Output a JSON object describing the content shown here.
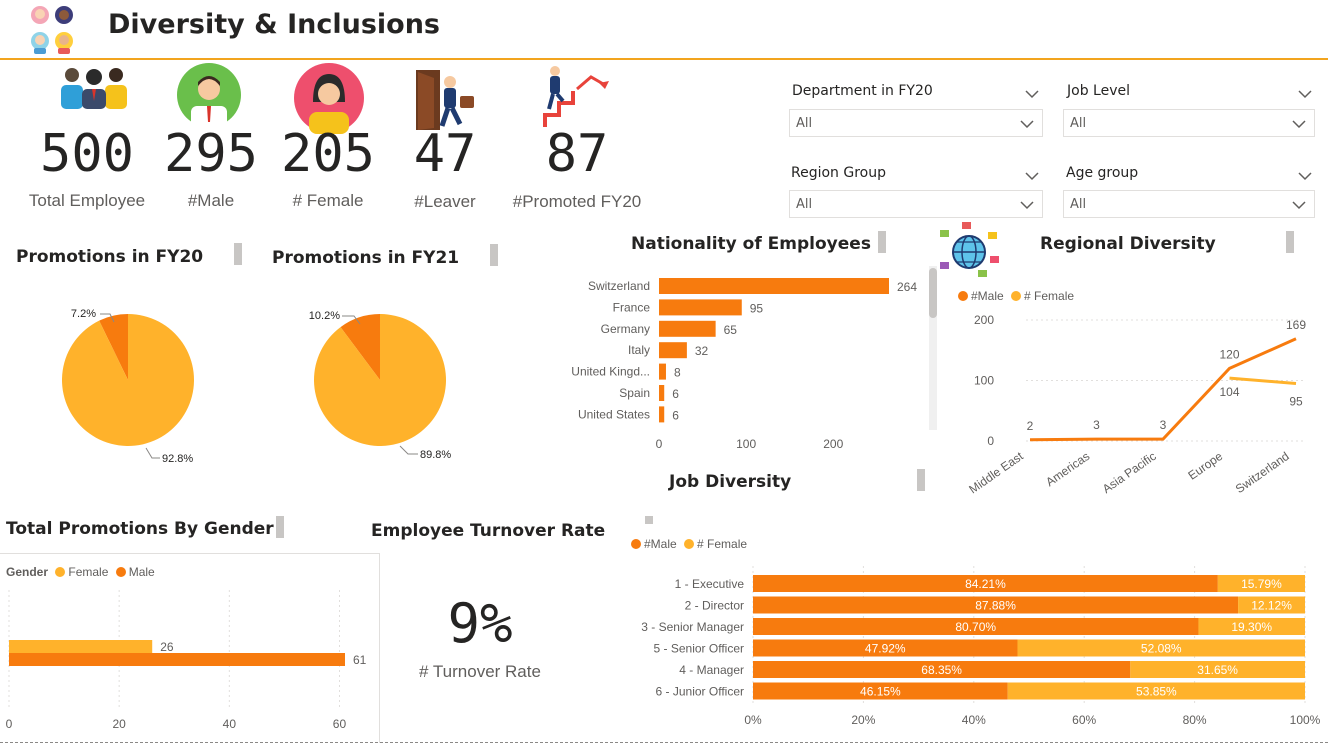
{
  "header": {
    "title": "Diversity & Inclusions",
    "logo_icon": "people-group-icon"
  },
  "kpis": [
    {
      "value": "500",
      "label": "Total Employee",
      "icon": "team-icon"
    },
    {
      "value": "295",
      "label": "#Male",
      "icon": "male-avatar-icon"
    },
    {
      "value": "205",
      "label": "# Female",
      "icon": "female-avatar-icon"
    },
    {
      "value": "47",
      "label": "#Leaver",
      "icon": "leaver-door-icon"
    },
    {
      "value": "87",
      "label": "#Promoted FY20",
      "icon": "promotion-stairs-icon"
    }
  ],
  "slicers": [
    {
      "title": "Department in FY20",
      "value": "All"
    },
    {
      "title": "Job Level",
      "value": "All"
    },
    {
      "title": "Region Group",
      "value": "All"
    },
    {
      "title": "Age group",
      "value": "All"
    }
  ],
  "colors": {
    "male": "#f77b0e",
    "female": "#ffb22b",
    "accent_line": "#f2a41e",
    "text": "#252423",
    "muted": "#605e5c"
  },
  "turnover": {
    "title": "Employee Turnover Rate",
    "value": "9%",
    "label": "# Turnover Rate"
  },
  "chart_data": [
    {
      "id": "promotions-fy20",
      "type": "pie",
      "title": "Promotions in FY20",
      "slices": [
        {
          "label": "7.2%",
          "value": 7.2,
          "color": "#f77b0e"
        },
        {
          "label": "92.8%",
          "value": 92.8,
          "color": "#ffb22b"
        }
      ]
    },
    {
      "id": "promotions-fy21",
      "type": "pie",
      "title": "Promotions in FY21",
      "slices": [
        {
          "label": "10.2%",
          "value": 10.2,
          "color": "#f77b0e"
        },
        {
          "label": "89.8%",
          "value": 89.8,
          "color": "#ffb22b"
        }
      ]
    },
    {
      "id": "nationality",
      "type": "bar",
      "orientation": "horizontal",
      "title": "Nationality of Employees",
      "categories": [
        "Switzerland",
        "France",
        "Germany",
        "Italy",
        "United Kingd...",
        "Spain",
        "United States"
      ],
      "values": [
        264,
        95,
        65,
        32,
        8,
        6,
        6
      ],
      "xlim": [
        0,
        270
      ],
      "xticks": [
        0,
        100,
        200
      ],
      "color": "#f77b0e"
    },
    {
      "id": "regional-diversity",
      "type": "line",
      "title": "Regional Diversity",
      "categories": [
        "Middle East",
        "Americas",
        "Asia Pacific",
        "Europe",
        "Switzerland"
      ],
      "series": [
        {
          "name": "#Male",
          "values": [
            2,
            3,
            3,
            120,
            169
          ],
          "color": "#f77b0e"
        },
        {
          "name": "# Female",
          "values": [
            null,
            null,
            null,
            104,
            95
          ],
          "color": "#ffb22b"
        }
      ],
      "value_labels": [
        {
          "series": 0,
          "index": 0,
          "text": "2"
        },
        {
          "series": 0,
          "index": 1,
          "text": "3"
        },
        {
          "series": 0,
          "index": 2,
          "text": "3"
        },
        {
          "series": 0,
          "index": 3,
          "text": "120"
        },
        {
          "series": 0,
          "index": 4,
          "text": "169"
        },
        {
          "series": 1,
          "index": 3,
          "text": "104"
        },
        {
          "series": 1,
          "index": 4,
          "text": "95"
        }
      ],
      "ylim": [
        0,
        200
      ],
      "yticks": [
        0,
        100,
        200
      ],
      "grid": true,
      "legend": "top-left"
    },
    {
      "id": "job-diversity",
      "type": "bar",
      "orientation": "horizontal",
      "stacked": "100%",
      "title": "Job Diversity",
      "categories": [
        "1 - Executive",
        "2 - Director",
        "3 - Senior Manager",
        "5 - Senior Officer",
        "4 - Manager",
        "6 - Junior Officer"
      ],
      "series": [
        {
          "name": "#Male",
          "values": [
            84.21,
            87.88,
            80.7,
            47.92,
            68.35,
            46.15
          ],
          "labels": [
            "84.21%",
            "87.88%",
            "80.70%",
            "47.92%",
            "68.35%",
            "46.15%"
          ],
          "color": "#f77b0e"
        },
        {
          "name": "# Female",
          "values": [
            15.79,
            12.12,
            19.3,
            52.08,
            31.65,
            53.85
          ],
          "labels": [
            "15.79%",
            "12.12%",
            "19.30%",
            "52.08%",
            "31.65%",
            "53.85%"
          ],
          "color": "#ffb22b"
        }
      ],
      "xticks": [
        "0%",
        "20%",
        "40%",
        "60%",
        "80%",
        "100%"
      ],
      "legend": "top-left"
    },
    {
      "id": "promotions-by-gender",
      "type": "bar",
      "orientation": "horizontal",
      "title": "Total Promotions By Gender",
      "legend_title": "Gender",
      "series": [
        {
          "name": "Female",
          "values": [
            26
          ],
          "color": "#ffb22b"
        },
        {
          "name": "Male",
          "values": [
            61
          ],
          "color": "#f77b0e"
        }
      ],
      "xlim": [
        0,
        68
      ],
      "xticks": [
        0,
        20,
        40,
        60
      ],
      "grid": true,
      "legend": "top-left"
    }
  ]
}
